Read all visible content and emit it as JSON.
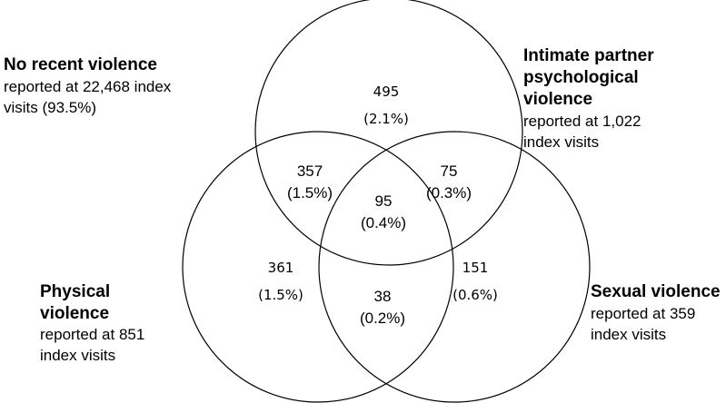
{
  "sets": {
    "none": {
      "title": "No recent violence",
      "desc_lines": [
        "reported at 22,468 index",
        "visits (93.5%)"
      ]
    },
    "psych": {
      "title_lines": [
        "Intimate partner",
        "psychological",
        "violence"
      ],
      "desc_lines": [
        "reported at 1,022",
        "index visits"
      ]
    },
    "physical": {
      "title_lines": [
        "Physical",
        "violence"
      ],
      "desc_lines": [
        "reported at 851",
        "index visits"
      ]
    },
    "sexual": {
      "title": "Sexual violence",
      "desc_lines": [
        "reported at 359",
        "index visits"
      ]
    }
  },
  "regions": {
    "psych_only": {
      "count": "495",
      "pct": "(2.1%)"
    },
    "psych_physical": {
      "count": "357",
      "pct": "(1.5%)"
    },
    "psych_sexual": {
      "count": "75",
      "pct": "(0.3%)"
    },
    "all_three": {
      "count": "95",
      "pct": "(0.4%)"
    },
    "physical_only": {
      "count": "361",
      "pct": "(1.5%)"
    },
    "sexual_only": {
      "count": "151",
      "pct": "(0.6%)"
    },
    "physical_sexual": {
      "count": "38",
      "pct": "(0.2%)"
    }
  },
  "colors": {
    "stroke": "#000000",
    "background": "#ffffff",
    "text": "#000000"
  }
}
